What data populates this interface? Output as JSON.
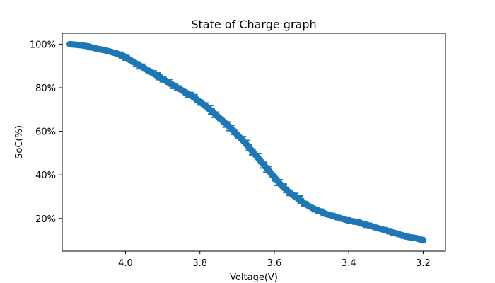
{
  "chart_data": {
    "type": "line",
    "title": "State of Charge graph",
    "xlabel": "Voltage(V)",
    "ylabel": "SoC(%)",
    "x_inverted": true,
    "xlim": [
      4.17,
      3.14
    ],
    "ylim": [
      5,
      105
    ],
    "x_ticks": [
      4.0,
      3.8,
      3.6,
      3.4,
      3.2
    ],
    "x_tick_labels": [
      "4.0",
      "3.8",
      "3.6",
      "3.4",
      "3.2"
    ],
    "y_ticks": [
      20,
      40,
      60,
      80,
      100
    ],
    "y_tick_labels": [
      "20%",
      "40%",
      "60%",
      "80%",
      "100%"
    ],
    "grid": false,
    "series": [
      {
        "color": "#1f77b4",
        "x": [
          4.15,
          4.12,
          4.1,
          4.08,
          4.05,
          4.02,
          4.0,
          3.98,
          3.96,
          3.94,
          3.92,
          3.9,
          3.88,
          3.86,
          3.84,
          3.82,
          3.8,
          3.78,
          3.76,
          3.74,
          3.72,
          3.7,
          3.68,
          3.66,
          3.64,
          3.62,
          3.6,
          3.58,
          3.56,
          3.54,
          3.52,
          3.5,
          3.48,
          3.46,
          3.44,
          3.42,
          3.4,
          3.38,
          3.36,
          3.34,
          3.32,
          3.3,
          3.28,
          3.26,
          3.24,
          3.22,
          3.2
        ],
        "y": [
          100,
          99.5,
          99,
          98,
          97,
          95.5,
          94,
          92,
          90,
          88,
          86,
          84,
          82,
          80,
          78,
          76,
          73.5,
          71,
          68,
          65,
          62,
          58.5,
          55,
          51,
          47,
          43,
          39,
          35,
          32,
          29.5,
          27,
          25,
          23.5,
          22,
          21,
          20,
          19,
          18.5,
          17.5,
          16.5,
          15.5,
          14.5,
          13.5,
          12.5,
          11.5,
          11,
          10
        ]
      }
    ]
  }
}
